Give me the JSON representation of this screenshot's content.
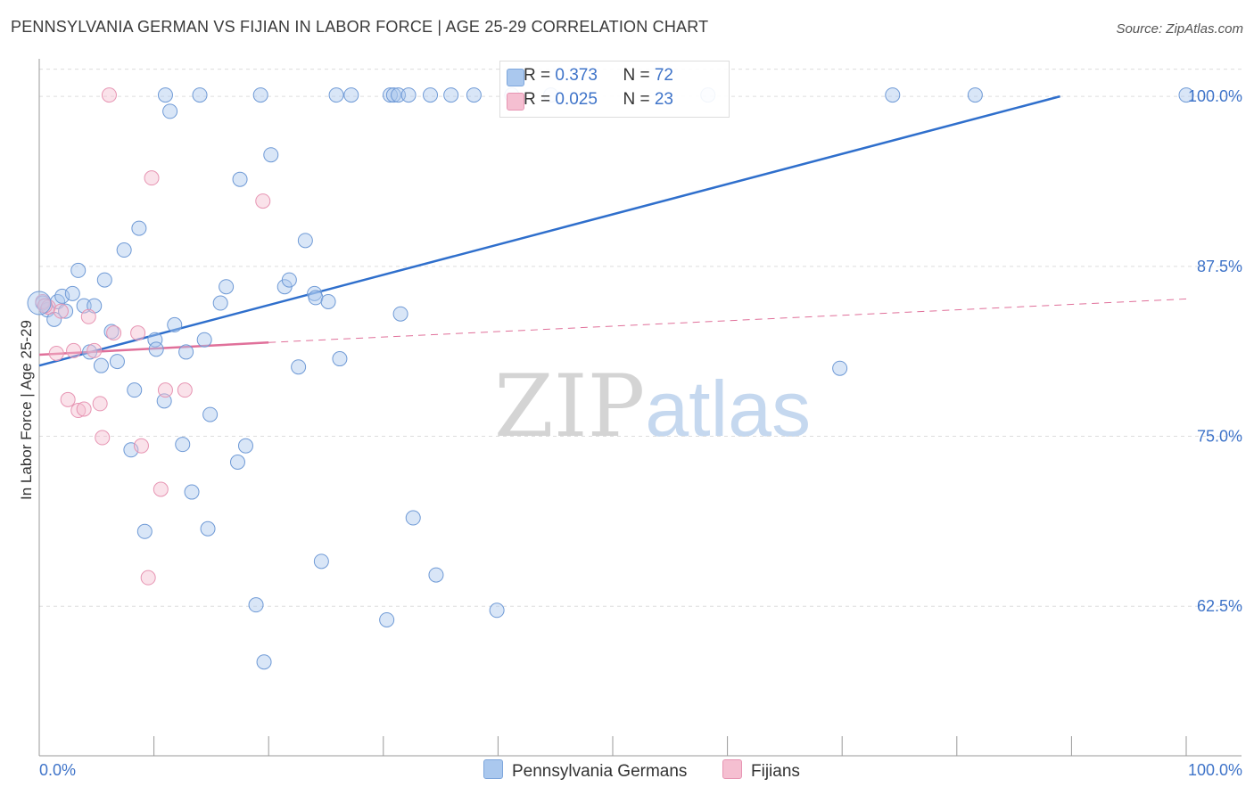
{
  "title": "PENNSYLVANIA GERMAN VS FIJIAN IN LABOR FORCE | AGE 25-29 CORRELATION CHART",
  "source": "Source: ZipAtlas.com",
  "watermark": {
    "zip": "ZIP",
    "atlas": "atlas"
  },
  "colors": {
    "blue": "#3f74c9",
    "pink": "#e0709a",
    "blue_fill": "#aac8ee",
    "pink_fill": "#f5bfd1"
  },
  "legend_stats": [
    {
      "r_label": "R = ",
      "r_value": "0.373",
      "n_label": "N = ",
      "n_value": "72"
    },
    {
      "r_label": "R = ",
      "r_value": "0.025",
      "n_label": "N = ",
      "n_value": "23"
    }
  ],
  "bottom_legend": [
    {
      "label": "Pennsylvania Germans"
    },
    {
      "label": "Fijians"
    }
  ],
  "chart_data": {
    "type": "scatter",
    "title": "PENNSYLVANIA GERMAN VS FIJIAN IN LABOR FORCE | AGE 25-29 CORRELATION CHART",
    "xlabel": "",
    "ylabel": "In Labor Force | Age 25-29",
    "xlim": [
      0,
      100
    ],
    "ylim": [
      51.5,
      102.5
    ],
    "x_tick_labels": [
      "0.0%",
      "100.0%"
    ],
    "y_ticks": [
      62.5,
      75.0,
      87.5,
      100.0
    ],
    "y_tick_labels": [
      "62.5%",
      "75.0%",
      "87.5%",
      "100.0%"
    ],
    "series": [
      {
        "name": "Pennsylvania Germans",
        "R": 0.373,
        "N": 72,
        "trend": {
          "x": [
            0,
            89
          ],
          "y": [
            80.2,
            100.0
          ],
          "dashed_to": null
        },
        "points": [
          [
            0.3,
            84.8
          ],
          [
            0.7,
            84.3
          ],
          [
            1.3,
            83.6
          ],
          [
            1.6,
            84.9
          ],
          [
            2.0,
            85.3
          ],
          [
            2.3,
            84.2
          ],
          [
            2.9,
            85.5
          ],
          [
            3.4,
            87.2
          ],
          [
            3.9,
            84.6
          ],
          [
            4.4,
            81.2
          ],
          [
            4.8,
            84.6
          ],
          [
            5.4,
            80.2
          ],
          [
            5.7,
            86.5
          ],
          [
            6.3,
            82.7
          ],
          [
            6.8,
            80.5
          ],
          [
            8.0,
            74.0
          ],
          [
            8.3,
            78.4
          ],
          [
            8.7,
            90.3
          ],
          [
            9.2,
            68.0
          ],
          [
            7.4,
            88.7
          ],
          [
            10.1,
            82.1
          ],
          [
            10.2,
            81.4
          ],
          [
            10.9,
            77.6
          ],
          [
            11.0,
            100.1
          ],
          [
            11.4,
            98.9
          ],
          [
            11.8,
            83.2
          ],
          [
            12.5,
            74.4
          ],
          [
            12.8,
            81.2
          ],
          [
            13.3,
            70.9
          ],
          [
            14.0,
            100.1
          ],
          [
            14.4,
            82.1
          ],
          [
            14.7,
            68.2
          ],
          [
            14.9,
            76.6
          ],
          [
            15.8,
            84.8
          ],
          [
            16.3,
            86.0
          ],
          [
            17.3,
            73.1
          ],
          [
            17.5,
            93.9
          ],
          [
            18.0,
            74.3
          ],
          [
            18.9,
            62.6
          ],
          [
            19.3,
            100.1
          ],
          [
            19.6,
            58.4
          ],
          [
            20.2,
            95.7
          ],
          [
            21.4,
            86.0
          ],
          [
            21.8,
            86.5
          ],
          [
            22.6,
            80.1
          ],
          [
            23.2,
            89.4
          ],
          [
            24.0,
            85.5
          ],
          [
            24.1,
            85.2
          ],
          [
            24.6,
            65.8
          ],
          [
            25.2,
            84.9
          ],
          [
            25.9,
            100.1
          ],
          [
            26.2,
            80.7
          ],
          [
            27.2,
            100.1
          ],
          [
            30.3,
            61.5
          ],
          [
            30.6,
            100.1
          ],
          [
            30.9,
            100.1
          ],
          [
            31.3,
            100.1
          ],
          [
            31.5,
            84.0
          ],
          [
            32.2,
            100.1
          ],
          [
            32.6,
            69.0
          ],
          [
            34.1,
            100.1
          ],
          [
            34.6,
            64.8
          ],
          [
            35.9,
            100.1
          ],
          [
            37.9,
            100.1
          ],
          [
            39.9,
            62.2
          ],
          [
            41.2,
            100.1
          ],
          [
            44.6,
            100.1
          ],
          [
            58.3,
            100.1
          ],
          [
            69.8,
            80.0
          ],
          [
            74.4,
            100.1
          ],
          [
            81.6,
            100.1
          ],
          [
            100.0,
            100.1
          ]
        ]
      },
      {
        "name": "Fijians",
        "R": 0.025,
        "N": 23,
        "trend": {
          "x": [
            0,
            20
          ],
          "y": [
            81.0,
            81.9
          ],
          "dashed_to": [
            100,
            85.1
          ]
        },
        "points": [
          [
            0.3,
            84.9
          ],
          [
            0.8,
            84.5
          ],
          [
            1.5,
            81.1
          ],
          [
            1.9,
            84.2
          ],
          [
            2.5,
            77.7
          ],
          [
            3.0,
            81.3
          ],
          [
            3.4,
            76.9
          ],
          [
            3.9,
            77.0
          ],
          [
            4.3,
            83.8
          ],
          [
            4.8,
            81.3
          ],
          [
            5.3,
            77.4
          ],
          [
            5.5,
            74.9
          ],
          [
            6.1,
            100.1
          ],
          [
            6.5,
            82.6
          ],
          [
            8.6,
            82.6
          ],
          [
            8.9,
            74.3
          ],
          [
            9.5,
            64.6
          ],
          [
            9.8,
            94.0
          ],
          [
            10.6,
            71.1
          ],
          [
            11.0,
            78.4
          ],
          [
            12.7,
            78.4
          ],
          [
            19.5,
            92.3
          ],
          [
            0.5,
            84.6
          ]
        ]
      }
    ]
  }
}
